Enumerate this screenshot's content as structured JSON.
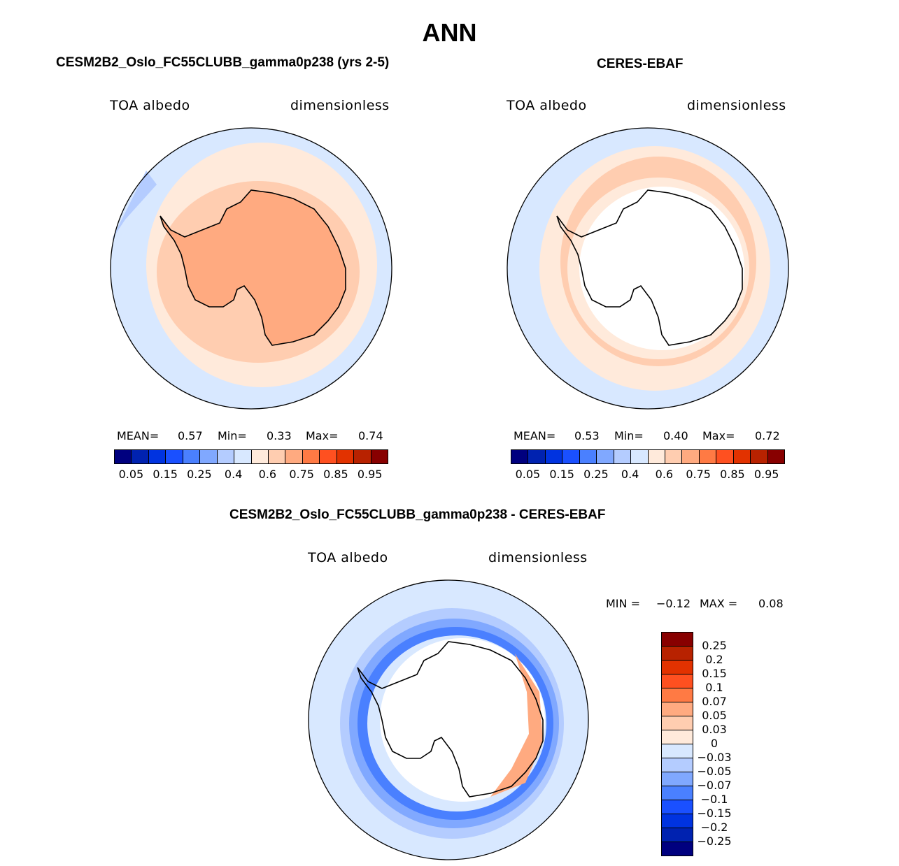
{
  "title": "ANN",
  "panels": [
    {
      "title": "CESM2B2_Oslo_FC55CLUBB_gamma0p238 (yrs 2-5)",
      "variable": "TOA albedo",
      "units": "dimensionless",
      "mean_label": "MEAN=",
      "mean": "0.57",
      "min_label": "Min=",
      "min": "0.33",
      "max_label": "Max=",
      "max": "0.74"
    },
    {
      "title": "CERES-EBAF",
      "variable": "TOA albedo",
      "units": "dimensionless",
      "mean_label": "MEAN=",
      "mean": "0.53",
      "min_label": "Min=",
      "min": "0.40",
      "max_label": "Max=",
      "max": "0.72"
    },
    {
      "title": "CESM2B2_Oslo_FC55CLUBB_gamma0p238 - CERES-EBAF",
      "variable": "TOA albedo",
      "units": "dimensionless",
      "min_label": "MIN =",
      "min": "−0.12",
      "max_label": "MAX =",
      "max": "0.08"
    }
  ],
  "colorbar_colors": [
    "#00007f",
    "#0022b0",
    "#0033e0",
    "#1a50ff",
    "#4a80ff",
    "#80a8ff",
    "#b4ccff",
    "#d8e8ff",
    "#ffeadb",
    "#ffcdb0",
    "#ffaa80",
    "#ff7a44",
    "#ff5020",
    "#e23200",
    "#b82200",
    "#880000"
  ],
  "abs_labels": [
    "0.05",
    "0.15",
    "0.25",
    "0.4",
    "0.6",
    "0.75",
    "0.85",
    "0.95"
  ],
  "diff_labels": [
    "0.25",
    "0.2",
    "0.15",
    "0.1",
    "0.07",
    "0.05",
    "0.03",
    "0",
    "−0.03",
    "−0.05",
    "−0.07",
    "−0.1",
    "−0.15",
    "−0.2",
    "−0.25"
  ]
}
